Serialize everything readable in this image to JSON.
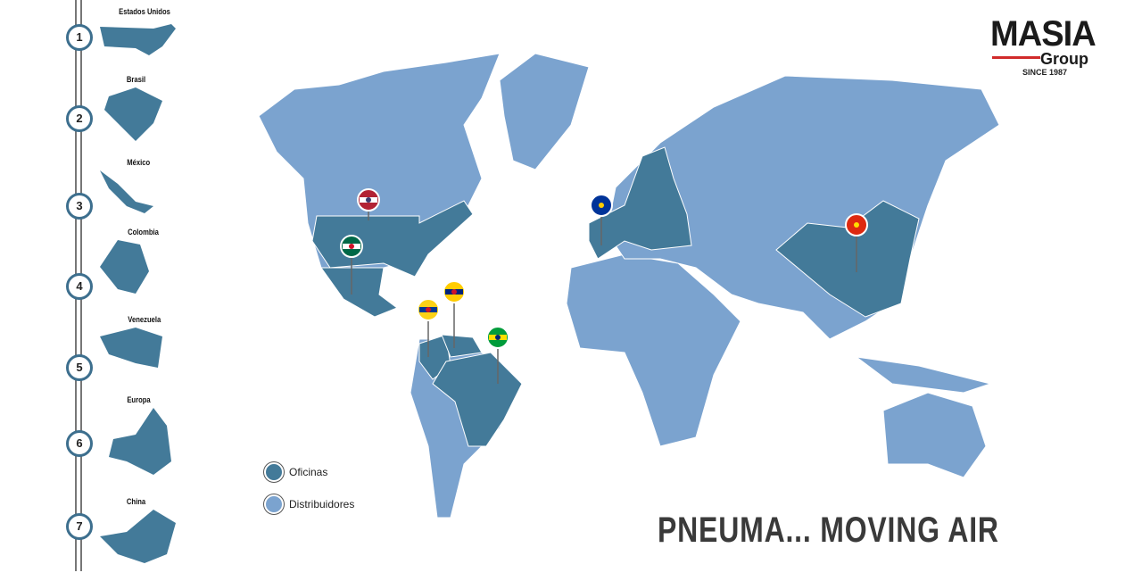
{
  "colors": {
    "office": "#437a99",
    "distributor": "#7ba3cf",
    "rail": "#777777",
    "accent_red": "#d12b2b"
  },
  "timeline": [
    {
      "num": "1",
      "label": "Estados Unidos"
    },
    {
      "num": "2",
      "label": "Brasil"
    },
    {
      "num": "3",
      "label": "México"
    },
    {
      "num": "4",
      "label": "Colombia"
    },
    {
      "num": "5",
      "label": "Venezuela"
    },
    {
      "num": "6",
      "label": "Europa"
    },
    {
      "num": "7",
      "label": "China"
    }
  ],
  "legend": {
    "offices": "Oficinas",
    "distributors": "Distribuidores"
  },
  "logo": {
    "name": "MASIA",
    "sub": "Group",
    "since": "SINCE 1987"
  },
  "slogan": "PNEUMA... MOVING AIR",
  "pins": [
    "usa-flag",
    "mexico-flag",
    "colombia-flag",
    "venezuela-flag",
    "brazil-flag",
    "eu-flag",
    "china-flag"
  ]
}
